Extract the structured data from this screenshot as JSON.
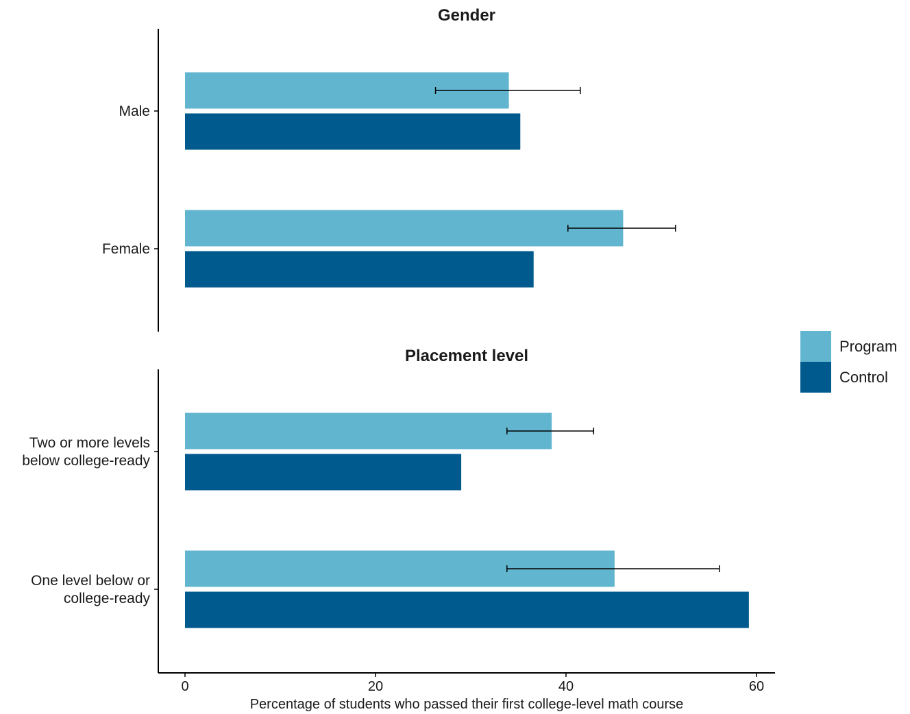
{
  "chart_data": {
    "type": "bar",
    "orientation": "horizontal",
    "xlabel": "Percentage of students who passed their first college-level math course",
    "xlim": [
      -2.8,
      62
    ],
    "xticks": [
      0,
      20,
      40,
      60
    ],
    "colors": {
      "Program": "#62b5cf",
      "Control": "#005a8e"
    },
    "legend": {
      "position": "right",
      "entries": [
        "Program",
        "Control"
      ]
    },
    "panels": [
      {
        "title": "Gender",
        "categories": [
          [
            "Male"
          ],
          [
            "Female"
          ]
        ],
        "series": [
          {
            "name": "Program",
            "values": [
              34.0,
              46.0
            ],
            "error_low": [
              26.3,
              40.2
            ],
            "error_high": [
              41.5,
              51.5
            ]
          },
          {
            "name": "Control",
            "values": [
              35.2,
              36.6
            ]
          }
        ]
      },
      {
        "title": "Placement level",
        "categories": [
          [
            "Two or more levels",
            "below college-ready"
          ],
          [
            "One level below or",
            "college-ready"
          ]
        ],
        "series": [
          {
            "name": "Program",
            "values": [
              38.5,
              45.1
            ],
            "error_low": [
              33.8,
              33.8
            ],
            "error_high": [
              42.9,
              56.1
            ]
          },
          {
            "name": "Control",
            "values": [
              29.0,
              59.2
            ]
          }
        ]
      }
    ]
  }
}
